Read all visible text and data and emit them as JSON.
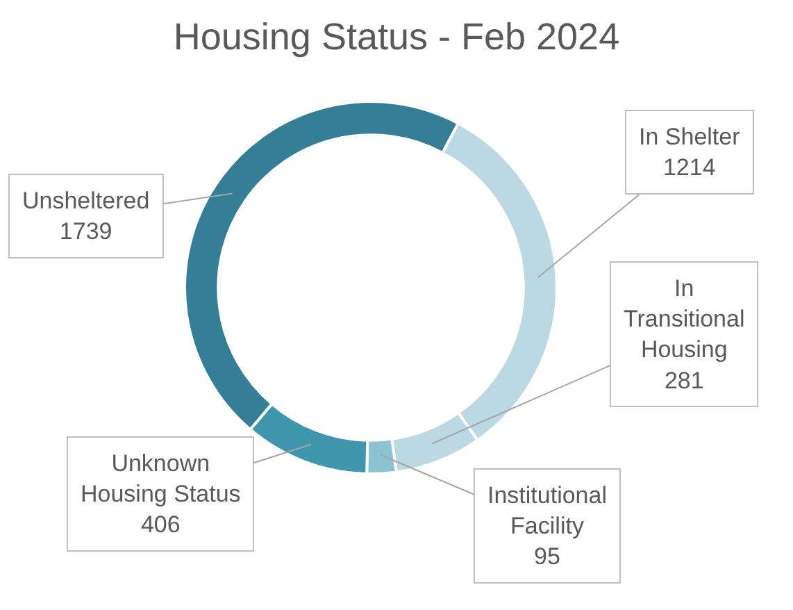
{
  "chart_data": {
    "type": "donut",
    "title": "Housing Status - Feb 2024",
    "categories": [
      "In Shelter",
      "In Transitional Housing",
      "Institutional Facility",
      "Unknown Housing Status",
      "Unsheltered"
    ],
    "values": [
      1214,
      281,
      95,
      406,
      1739
    ],
    "colors": [
      "#bcd8e3",
      "#bcd8e3",
      "#8cc3d3",
      "#3f97ad",
      "#357f96"
    ],
    "data_labels": true,
    "legend": false
  }
}
